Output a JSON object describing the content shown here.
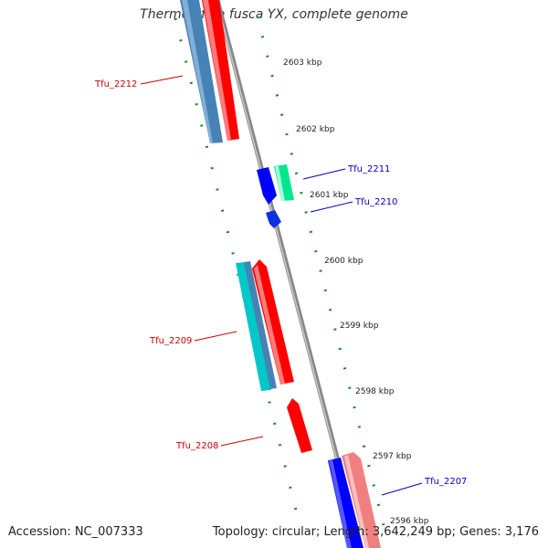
{
  "title": "Thermobifida fusca YX, complete genome",
  "footer": {
    "accession": "Accession: NC_007333",
    "topology": "Topology: circular; Length: 3,642,249 bp; Genes: 3,176"
  },
  "ticks": [
    "2603 kbp",
    "2602 kbp",
    "2601 kbp",
    "2600 kbp",
    "2599 kbp",
    "2598 kbp",
    "2597 kbp",
    "2596 kbp"
  ],
  "genes": [
    {
      "label": "Tfu_2212",
      "color": "#cc0000"
    },
    {
      "label": "Tfu_2211",
      "color": "#0000cc"
    },
    {
      "label": "Tfu_2210",
      "color": "#0000cc"
    },
    {
      "label": "Tfu_2209",
      "color": "#cc0000"
    },
    {
      "label": "Tfu_2208",
      "color": "#cc0000"
    },
    {
      "label": "Tfu_2207",
      "color": "#0000cc"
    }
  ],
  "colors": {
    "backbone": "#888888",
    "tick_dashes": "#228b22",
    "forward_cds": "#ff0000",
    "reverse_cds": "#0000ff",
    "steelblue_feature": "#4682b4",
    "cyan_feature": "#00c8c8",
    "green_feature": "#00e68c",
    "pink_feature": "#f08080"
  }
}
